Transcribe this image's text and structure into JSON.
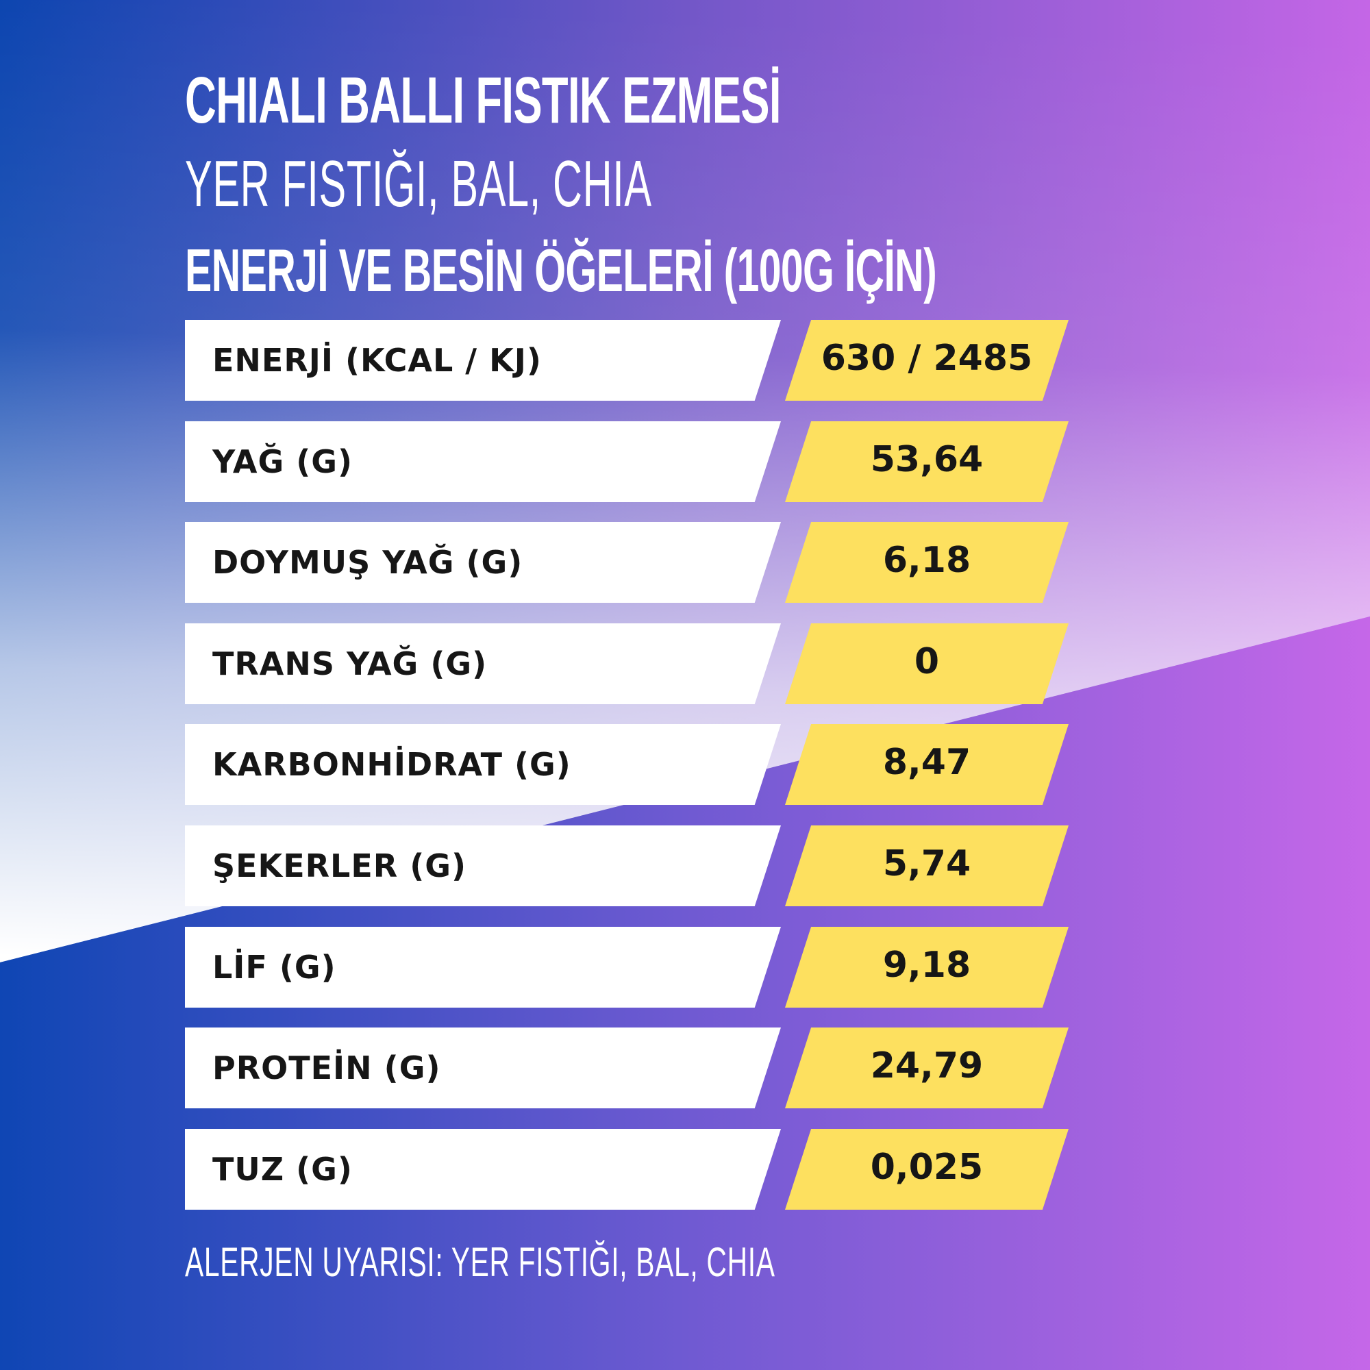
{
  "colors": {
    "bg_top_left": "#0c45b0",
    "bg_top_right": "#c466e6",
    "bg_bottom_left": "#0f46b4",
    "bg_bottom_right": "#c567e8",
    "label_background": "#ffffff",
    "value_background": "#fde05f",
    "text_dark": "#161616",
    "text_light": "#ffffff"
  },
  "header": {
    "title": "CHIALI BALLI FISTIK EZMESİ",
    "subtitle": "YER FISTIĞI, BAL, CHIA",
    "section": "ENERJİ VE BESİN ÖĞELERİ (100G İÇİN)"
  },
  "nutrition": [
    {
      "label": "ENERJİ (KCAL / KJ)",
      "value": "630 / 2485"
    },
    {
      "label": "YAĞ (G)",
      "value": "53,64"
    },
    {
      "label": "DOYMUŞ YAĞ (G)",
      "value": "6,18"
    },
    {
      "label": "TRANS YAĞ (G)",
      "value": "0"
    },
    {
      "label": "KARBONHİDRAT (G)",
      "value": "8,47"
    },
    {
      "label": "ŞEKERLER (G)",
      "value": "5,74"
    },
    {
      "label": "LİF (G)",
      "value": "9,18"
    },
    {
      "label": "PROTEİN (G)",
      "value": "24,79"
    },
    {
      "label": "TUZ (G)",
      "value": "0,025"
    }
  ],
  "allergen_warning": "ALERJEN UYARISI: YER FISTIĞI, BAL, CHIA"
}
